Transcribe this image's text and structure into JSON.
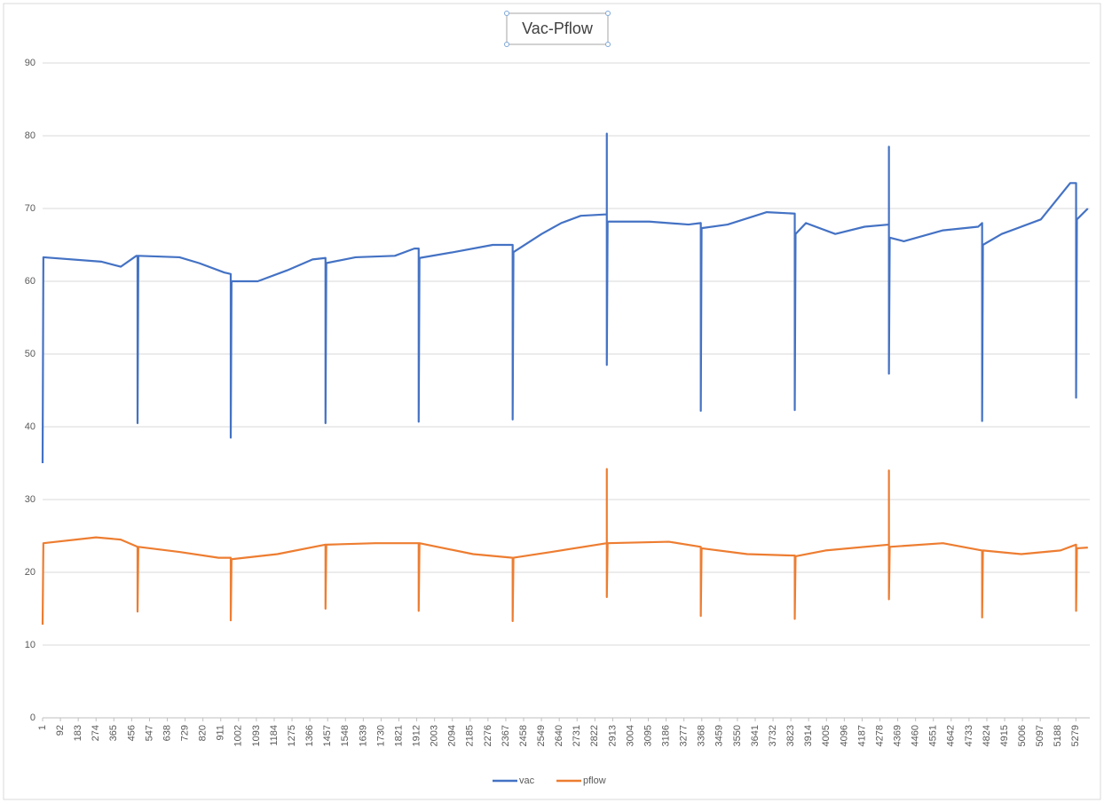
{
  "chart_data": {
    "type": "line",
    "title": "Vac-Pflow",
    "xlim": [
      1,
      5350
    ],
    "xticks": [
      1,
      92,
      183,
      274,
      365,
      456,
      547,
      638,
      729,
      820,
      911,
      1002,
      1093,
      1184,
      1275,
      1366,
      1457,
      1548,
      1639,
      1730,
      1821,
      1912,
      2003,
      2094,
      2185,
      2276,
      2367,
      2458,
      2549,
      2640,
      2731,
      2822,
      2913,
      3004,
      3095,
      3186,
      3277,
      3368,
      3459,
      3550,
      3641,
      3732,
      3823,
      3914,
      4005,
      4096,
      4187,
      4278,
      4369,
      4460,
      4551,
      4642,
      4733,
      4824,
      4915,
      5006,
      5097,
      5188,
      5279
    ],
    "ylim": [
      0,
      90
    ],
    "yticks": [
      0,
      10,
      20,
      30,
      40,
      50,
      60,
      70,
      80,
      90
    ],
    "grid": true,
    "legend": "bottom",
    "series": [
      {
        "name": "vac",
        "color": "#4472c4",
        "x": [
          1,
          5,
          300,
          400,
          480,
          486,
          486,
          490,
          700,
          800,
          930,
          962,
          962,
          966,
          1100,
          1250,
          1380,
          1446,
          1446,
          1450,
          1600,
          1800,
          1900,
          1922,
          1922,
          1926,
          2100,
          2300,
          2400,
          2402,
          2402,
          2406,
          2550,
          2650,
          2750,
          2883,
          2883,
          2883,
          2887,
          3100,
          3300,
          3363,
          3363,
          3367,
          3500,
          3700,
          3843,
          3843,
          3847,
          3900,
          4050,
          4200,
          4324,
          4324,
          4324,
          4328,
          4400,
          4600,
          4780,
          4800,
          4800,
          4804,
          4900,
          5100,
          5250,
          5280,
          5280,
          5284,
          5340
        ],
        "values": [
          35,
          63.3,
          62.7,
          62,
          63.5,
          63.5,
          40.5,
          63.5,
          63.3,
          62.5,
          61.2,
          61,
          38.5,
          60,
          60,
          61.5,
          63,
          63.2,
          40.5,
          62.5,
          63.3,
          63.5,
          64.5,
          64.5,
          40.7,
          63.2,
          64,
          65,
          65,
          65,
          41,
          64,
          66.5,
          68,
          69,
          69.2,
          80.3,
          48.5,
          68.2,
          68.2,
          67.8,
          68,
          42.2,
          67.3,
          67.8,
          69.5,
          69.3,
          42.3,
          66.5,
          68,
          66.5,
          67.5,
          67.8,
          78.5,
          47.3,
          66,
          65.5,
          67,
          67.5,
          68,
          40.8,
          65,
          66.5,
          68.5,
          73.5,
          73.5,
          44,
          68.5,
          70
        ]
      },
      {
        "name": "pflow",
        "color": "#ed7d31",
        "x": [
          1,
          5,
          274,
          400,
          486,
          486,
          490,
          700,
          900,
          962,
          962,
          966,
          1200,
          1446,
          1446,
          1450,
          1700,
          1922,
          1922,
          1926,
          2200,
          2402,
          2402,
          2406,
          2600,
          2883,
          2883,
          2883,
          2887,
          3200,
          3363,
          3363,
          3367,
          3600,
          3843,
          3843,
          3847,
          4000,
          4324,
          4324,
          4324,
          4328,
          4600,
          4800,
          4800,
          4804,
          5000,
          5200,
          5280,
          5280,
          5284,
          5340
        ],
        "values": [
          12.8,
          24,
          24.8,
          24.5,
          23.5,
          14.6,
          23.5,
          22.8,
          22,
          22,
          13.4,
          21.8,
          22.5,
          23.8,
          15,
          23.8,
          24,
          24,
          14.7,
          24,
          22.5,
          22,
          13.3,
          22,
          22.8,
          24,
          34.2,
          16.6,
          24,
          24.2,
          23.5,
          14,
          23.3,
          22.5,
          22.3,
          13.6,
          22.2,
          23,
          23.8,
          34,
          16.3,
          23.5,
          24,
          23,
          13.8,
          23,
          22.5,
          23,
          23.8,
          14.7,
          23.3,
          23.4
        ]
      }
    ]
  }
}
